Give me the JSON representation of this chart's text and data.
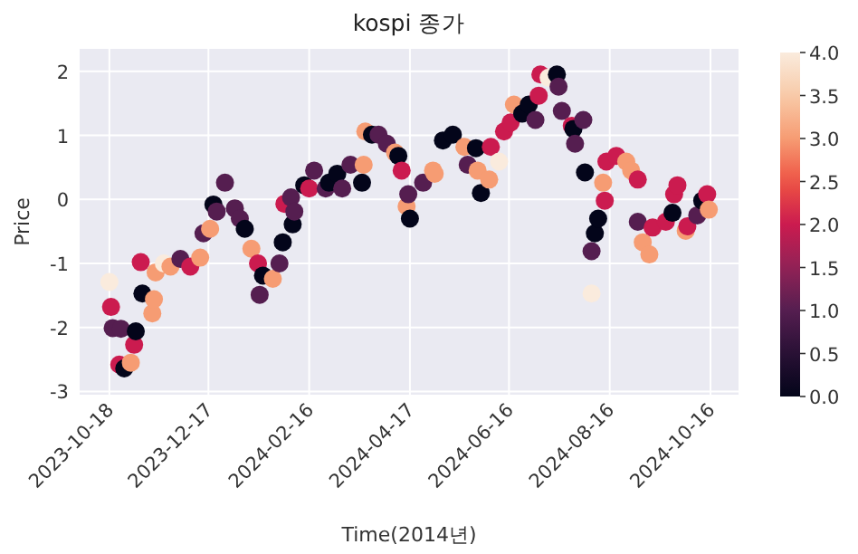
{
  "chart_data": {
    "type": "scatter",
    "title": "kospi 종가",
    "xlabel": "Time(2014년)",
    "ylabel": "Price",
    "xlim": [
      "2023-09-30",
      "2024-11-02"
    ],
    "ylim": [
      -3.05,
      2.35
    ],
    "xticks": [
      "2023-10-18",
      "2023-12-17",
      "2024-02-16",
      "2024-04-17",
      "2024-06-16",
      "2024-08-16",
      "2024-10-16"
    ],
    "yticks": [
      -3,
      -2,
      -1,
      0,
      1,
      2
    ],
    "clim": [
      0,
      4
    ],
    "cticks": [
      {
        "value": 0,
        "label": "0.0"
      },
      {
        "value": 0.5,
        "label": "0.5"
      },
      {
        "value": 1,
        "label": "1.0"
      },
      {
        "value": 1.5,
        "label": "1.5"
      },
      {
        "value": 2,
        "label": "2.0"
      },
      {
        "value": 2.5,
        "label": "2.5"
      },
      {
        "value": 3,
        "label": "3.0"
      },
      {
        "value": 3.5,
        "label": "3.5"
      },
      {
        "value": 4,
        "label": "4.0"
      }
    ],
    "grid": true,
    "marker": "circle",
    "x": [
      "2023-10-18",
      "2023-10-19",
      "2023-10-20",
      "2023-10-25",
      "2023-10-24",
      "2023-10-27",
      "2023-10-31",
      "2023-11-02",
      "2023-11-03",
      "2023-11-06",
      "2023-11-07",
      "2023-11-13",
      "2023-11-14",
      "2023-11-15",
      "2023-11-20",
      "2023-11-24",
      "2023-11-30",
      "2023-12-06",
      "2023-12-12",
      "2023-12-14",
      "2023-12-18",
      "2023-12-20",
      "2023-12-22",
      "2023-12-27",
      "2024-01-02",
      "2024-01-05",
      "2024-01-08",
      "2024-01-12",
      "2024-01-16",
      "2024-01-17",
      "2024-01-19",
      "2024-01-25",
      "2024-01-29",
      "2024-01-31",
      "2024-02-01",
      "2024-02-05",
      "2024-02-06",
      "2024-02-07",
      "2024-02-13",
      "2024-02-16",
      "2024-02-19",
      "2024-02-26",
      "2024-02-28",
      "2024-03-04",
      "2024-03-07",
      "2024-03-12",
      "2024-03-19",
      "2024-03-20",
      "2024-03-21",
      "2024-03-25",
      "2024-03-29",
      "2024-04-03",
      "2024-04-08",
      "2024-04-10",
      "2024-04-12",
      "2024-04-15",
      "2024-04-16",
      "2024-04-17",
      "2024-04-25",
      "2024-05-01",
      "2024-05-02",
      "2024-05-07",
      "2024-05-13",
      "2024-05-20",
      "2024-05-22",
      "2024-05-27",
      "2024-05-28",
      "2024-05-30",
      "2024-06-04",
      "2024-06-05",
      "2024-06-10",
      "2024-06-13",
      "2024-06-17",
      "2024-06-19",
      "2024-06-24",
      "2024-06-28",
      "2024-07-02",
      "2024-07-04",
      "2024-07-05",
      "2024-07-10",
      "2024-07-15",
      "2024-07-16",
      "2024-07-18",
      "2024-07-24",
      "2024-07-25",
      "2024-07-26",
      "2024-07-31",
      "2024-08-01",
      "2024-08-05",
      "2024-08-05",
      "2024-08-07",
      "2024-08-09",
      "2024-08-12",
      "2024-08-13",
      "2024-08-14",
      "2024-08-20",
      "2024-08-26",
      "2024-08-29",
      "2024-09-02",
      "2024-09-02",
      "2024-09-05",
      "2024-09-09",
      "2024-09-11",
      "2024-09-19",
      "2024-09-23",
      "2024-09-24",
      "2024-09-26",
      "2024-10-01",
      "2024-10-02",
      "2024-10-08",
      "2024-10-11",
      "2024-10-14",
      "2024-10-15"
    ],
    "values": [
      -1.29,
      -1.68,
      -2.01,
      -2.02,
      -2.58,
      -2.64,
      -2.55,
      -2.27,
      -2.06,
      -0.98,
      -1.47,
      -1.78,
      -1.56,
      -1.14,
      -1.0,
      -1.05,
      -0.93,
      -1.05,
      -0.91,
      -0.53,
      -0.46,
      -0.08,
      -0.19,
      0.26,
      -0.14,
      -0.3,
      -0.46,
      -0.77,
      -1.0,
      -1.49,
      -1.19,
      -1.24,
      -1.0,
      -0.67,
      -0.07,
      0.03,
      -0.39,
      -0.19,
      0.22,
      0.17,
      0.45,
      0.17,
      0.26,
      0.4,
      0.17,
      0.54,
      0.26,
      0.54,
      1.06,
      1.01,
      1.01,
      0.87,
      0.73,
      0.68,
      0.45,
      -0.11,
      0.08,
      -0.3,
      0.26,
      0.45,
      0.4,
      0.92,
      1.01,
      0.82,
      0.54,
      0.8,
      0.45,
      0.1,
      0.31,
      0.82,
      0.59,
      1.06,
      1.2,
      1.48,
      1.34,
      1.48,
      1.24,
      1.62,
      1.95,
      1.9,
      1.95,
      1.76,
      1.38,
      1.15,
      1.1,
      0.87,
      1.24,
      0.42,
      -1.47,
      -0.81,
      -0.53,
      -0.3,
      0.26,
      -0.02,
      0.59,
      0.68,
      0.59,
      0.45,
      0.31,
      -0.35,
      -0.67,
      -0.86,
      -0.44,
      -0.35,
      -0.21,
      0.08,
      0.22,
      -0.49,
      -0.42,
      -0.25,
      -0.02,
      0.08,
      -0.16
    ],
    "cvalues": [
      4,
      2,
      1,
      1,
      2,
      0,
      3,
      2,
      0,
      2,
      0,
      3,
      3,
      3,
      4,
      3,
      1,
      2,
      3,
      1,
      3,
      0,
      1,
      1,
      1,
      1,
      0,
      3,
      2,
      1,
      0,
      3,
      1,
      0,
      2,
      1,
      0,
      1,
      0,
      2,
      1,
      1,
      0,
      0,
      1,
      1,
      0,
      3,
      3,
      0,
      1,
      1,
      3,
      0,
      2,
      3,
      1,
      0,
      1,
      3,
      3,
      0,
      0,
      3,
      1,
      0,
      3,
      0,
      3,
      2,
      4,
      2,
      2,
      3,
      0,
      0,
      1,
      2,
      2,
      4,
      0,
      1,
      1,
      2,
      0,
      1,
      1,
      0,
      4,
      1,
      0,
      0,
      3,
      2,
      2,
      2,
      3,
      3,
      2,
      1,
      3,
      3,
      2,
      2,
      0,
      2,
      2,
      3,
      2,
      1,
      0,
      2,
      3
    ]
  }
}
